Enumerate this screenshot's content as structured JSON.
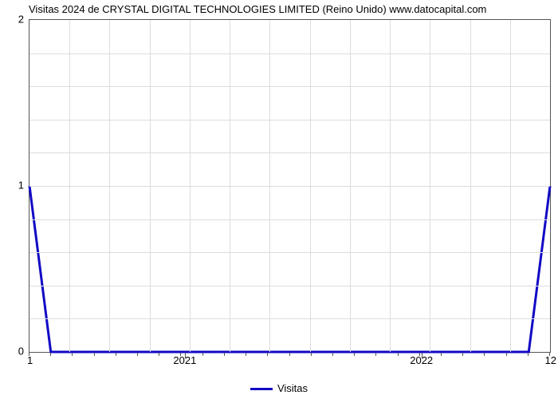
{
  "chart": {
    "type": "line",
    "title": "Visitas 2024 de CRYSTAL DIGITAL TECHNOLOGIES LIMITED (Reino Unido) www.datocapital.com",
    "title_fontsize": 13,
    "title_color": "#000000",
    "background_color": "#ffffff",
    "plot_border_color": "#555555",
    "grid_color": "#dddddd",
    "line_color": "#1108c4",
    "line_width": 3,
    "x_domain_months": [
      1,
      12
    ],
    "y_domain": [
      0,
      2
    ],
    "y_ticks": [
      0,
      1,
      2
    ],
    "y_minor_count_between": 4,
    "x_major_labels": [
      "2021",
      "2022"
    ],
    "x_major_positions_month": [
      4.3,
      9.3
    ],
    "x_minor_count": 24,
    "x_corner_left_label": "1",
    "x_corner_right_label": "12",
    "series": {
      "name": "Visitas",
      "points_month_value": [
        [
          1,
          1
        ],
        [
          1.45,
          0
        ],
        [
          11.55,
          0
        ],
        [
          12,
          1
        ]
      ]
    },
    "legend_label": "Visitas",
    "label_fontsize": 13
  }
}
